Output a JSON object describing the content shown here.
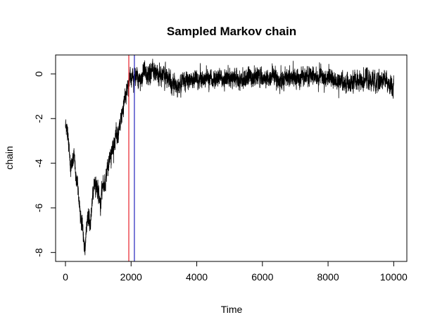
{
  "chart_data": {
    "type": "line",
    "title": "Sampled Markov chain",
    "xlabel": "Time",
    "ylabel": "chain",
    "xlim": [
      -300,
      10400
    ],
    "ylim": [
      -8.4,
      0.85
    ],
    "x_ticks": [
      0,
      2000,
      4000,
      6000,
      8000,
      10000
    ],
    "x_tick_labels": [
      "0",
      "2000",
      "4000",
      "6000",
      "8000",
      "10000"
    ],
    "y_ticks": [
      0,
      -2,
      -4,
      -6,
      -8
    ],
    "y_tick_labels": [
      "0",
      "-2",
      "-4",
      "-6",
      "-8"
    ],
    "grid": false,
    "legend": "none",
    "n_points": 10000,
    "series": [
      {
        "color": "#000000",
        "noise_sd": 0.18,
        "anchors": [
          {
            "x": 0,
            "y": -2.3
          },
          {
            "x": 80,
            "y": -2.8
          },
          {
            "x": 120,
            "y": -3.6
          },
          {
            "x": 160,
            "y": -4.2
          },
          {
            "x": 200,
            "y": -4.0
          },
          {
            "x": 260,
            "y": -3.4
          },
          {
            "x": 320,
            "y": -4.6
          },
          {
            "x": 400,
            "y": -5.2
          },
          {
            "x": 450,
            "y": -6.3
          },
          {
            "x": 520,
            "y": -6.8
          },
          {
            "x": 560,
            "y": -7.5
          },
          {
            "x": 600,
            "y": -7.9
          },
          {
            "x": 640,
            "y": -6.9
          },
          {
            "x": 700,
            "y": -6.2
          },
          {
            "x": 760,
            "y": -6.8
          },
          {
            "x": 830,
            "y": -5.4
          },
          {
            "x": 900,
            "y": -4.8
          },
          {
            "x": 980,
            "y": -5.3
          },
          {
            "x": 1050,
            "y": -5.8
          },
          {
            "x": 1120,
            "y": -5.1
          },
          {
            "x": 1200,
            "y": -4.9
          },
          {
            "x": 1300,
            "y": -4.0
          },
          {
            "x": 1400,
            "y": -3.6
          },
          {
            "x": 1500,
            "y": -2.9
          },
          {
            "x": 1600,
            "y": -2.7
          },
          {
            "x": 1700,
            "y": -2.0
          },
          {
            "x": 1800,
            "y": -1.2
          },
          {
            "x": 1900,
            "y": -0.5
          },
          {
            "x": 2000,
            "y": -0.2
          },
          {
            "x": 2200,
            "y": -0.15
          },
          {
            "x": 2600,
            "y": 0.1
          },
          {
            "x": 3000,
            "y": -0.1
          },
          {
            "x": 3400,
            "y": -0.5
          },
          {
            "x": 3800,
            "y": -0.2
          },
          {
            "x": 4200,
            "y": -0.25
          },
          {
            "x": 4600,
            "y": -0.2
          },
          {
            "x": 5000,
            "y": -0.15
          },
          {
            "x": 5400,
            "y": -0.3
          },
          {
            "x": 5800,
            "y": -0.15
          },
          {
            "x": 6200,
            "y": -0.2
          },
          {
            "x": 6600,
            "y": -0.25
          },
          {
            "x": 7000,
            "y": -0.2
          },
          {
            "x": 7400,
            "y": -0.1
          },
          {
            "x": 7800,
            "y": -0.15
          },
          {
            "x": 8200,
            "y": -0.35
          },
          {
            "x": 8600,
            "y": -0.5
          },
          {
            "x": 9000,
            "y": -0.3
          },
          {
            "x": 9400,
            "y": -0.4
          },
          {
            "x": 9800,
            "y": -0.3
          },
          {
            "x": 10000,
            "y": -0.7
          }
        ]
      }
    ],
    "vlines": [
      {
        "x": 1930,
        "color": "#e8202a"
      },
      {
        "x": 2100,
        "color": "#2222bb"
      }
    ]
  }
}
